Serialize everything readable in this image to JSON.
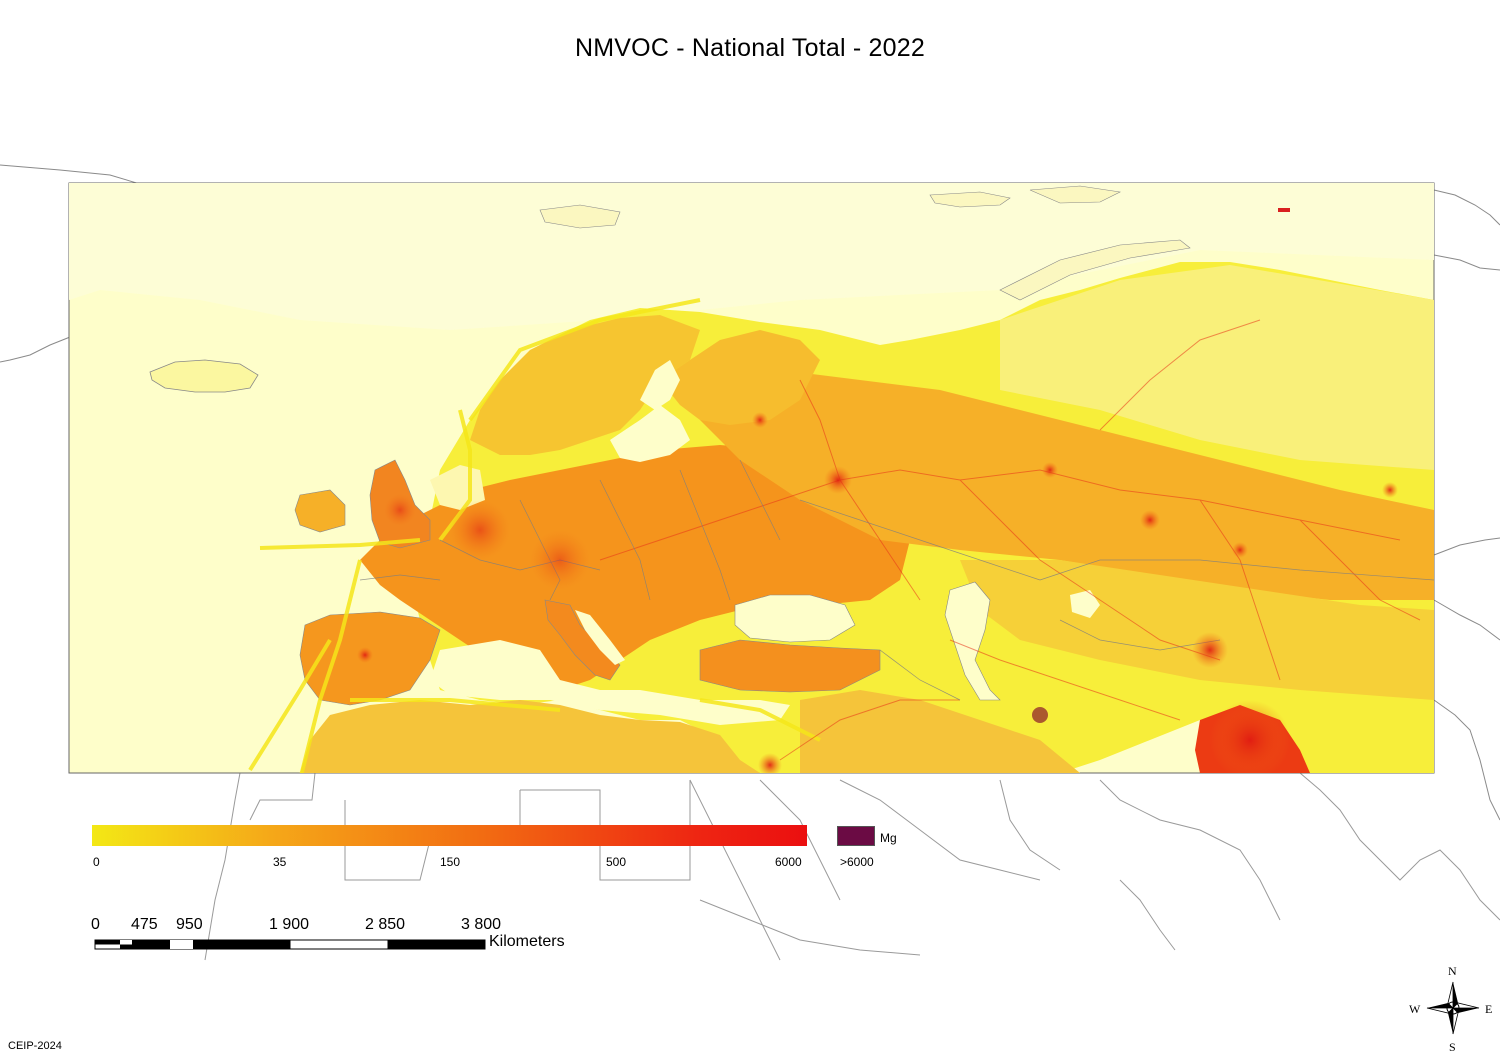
{
  "title": "NMVOC - National Total - 2022",
  "legend": {
    "gradient_colors": [
      "#f3e815",
      "#f5a818",
      "#f26b12",
      "#ee2512",
      "#eb0f10"
    ],
    "ticks": [
      "0",
      "35",
      "150",
      "500",
      "6000"
    ],
    "over_label": ">6000",
    "over_color": "#6b0b44",
    "unit": "Mg"
  },
  "scale_bar": {
    "ticks": [
      "0",
      "475",
      "950",
      "1 900",
      "2 850",
      "3 800"
    ],
    "units": "Kilometers"
  },
  "compass": {
    "north": "N",
    "south": "S",
    "east": "E",
    "west": "W"
  },
  "credit": "CEIP-2024",
  "colors": {
    "ocean": "#fefeca",
    "land_low": "#f7f14a",
    "land_mid": "#f7a72a",
    "land_high": "#ec3b13",
    "border_outline": "#7f7f7f"
  }
}
